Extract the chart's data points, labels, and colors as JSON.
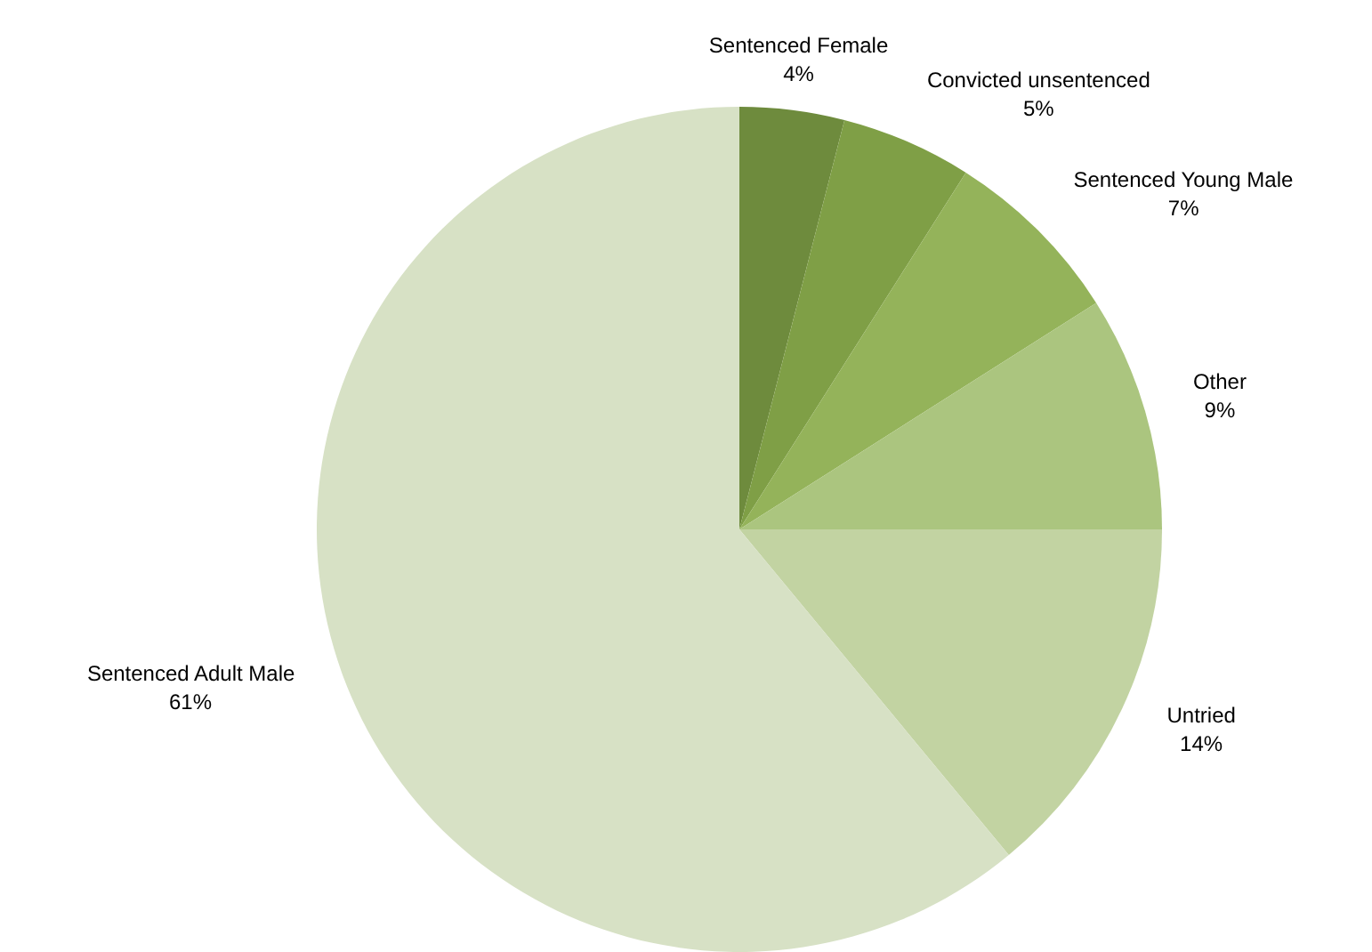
{
  "chart_data": {
    "type": "pie",
    "categories": [
      "Sentenced Female",
      "Convicted unsentenced",
      "Sentenced Young Male",
      "Other",
      "Untried",
      "Sentenced Adult Male"
    ],
    "values": [
      4,
      5,
      7,
      9,
      14,
      61
    ],
    "colors": [
      "#6e8b3d",
      "#7f9f46",
      "#94b35a",
      "#abc57f",
      "#c2d3a2",
      "#d7e1c5"
    ],
    "value_labels": [
      "4%",
      "5%",
      "7%",
      "9%",
      "14%",
      "61%"
    ],
    "legend": false
  }
}
